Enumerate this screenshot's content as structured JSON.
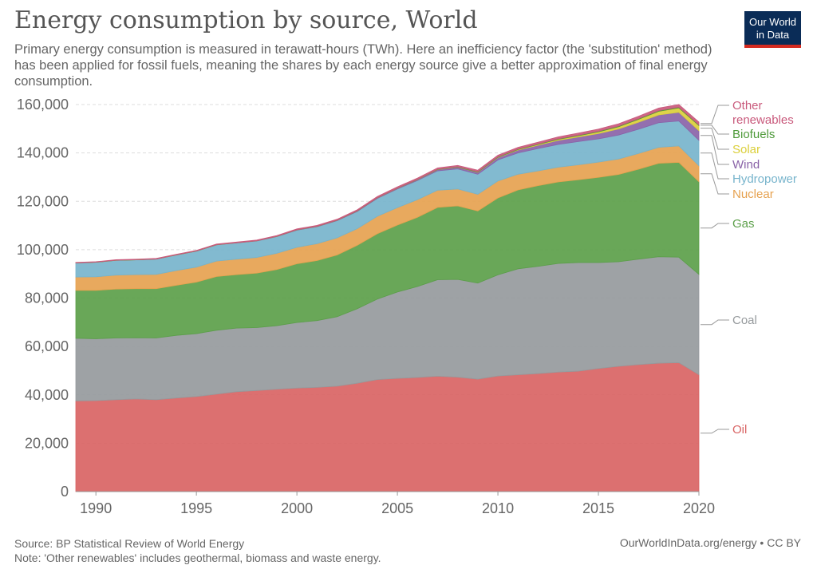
{
  "header": {
    "title": "Energy consumption by source, World",
    "subtitle": "Primary energy consumption is measured in terawatt-hours (TWh). Here an inefficiency factor (the 'substitution' method) has been applied for fossil fuels, meaning the shares by each energy source give a better approximation of final energy consumption.",
    "logo_line1": "Our World",
    "logo_line2": "in Data",
    "logo_color": "#0a2c57",
    "logo_accent": "#d42b21"
  },
  "footer": {
    "source": "Source: BP Statistical Review of World Energy",
    "note": "Note: 'Other renewables' includes geothermal, biomass and waste energy.",
    "license": "OurWorldInData.org/energy • CC BY"
  },
  "chart_data": {
    "type": "area",
    "stacked": true,
    "x": [
      1989,
      1990,
      1991,
      1992,
      1993,
      1994,
      1995,
      1996,
      1997,
      1998,
      1999,
      2000,
      2001,
      2002,
      2003,
      2004,
      2005,
      2006,
      2007,
      2008,
      2009,
      2010,
      2011,
      2012,
      2013,
      2014,
      2015,
      2016,
      2017,
      2018,
      2019,
      2020
    ],
    "xlim": [
      1989,
      2020
    ],
    "ylim": [
      0,
      160000
    ],
    "x_ticks": [
      "1990",
      "1995",
      "2000",
      "2005",
      "2010",
      "2015",
      "2020"
    ],
    "y_ticks": [
      "0",
      "20,000",
      "40,000",
      "60,000",
      "80,000",
      "100,000",
      "120,000",
      "140,000",
      "160,000"
    ],
    "grid": true,
    "legend_placement": "right, inline labels",
    "series": [
      {
        "name": "Oil",
        "color": "#d96464",
        "values": [
          37500,
          37600,
          38000,
          38300,
          38000,
          38700,
          39300,
          40300,
          41300,
          41800,
          42300,
          42800,
          43100,
          43600,
          44800,
          46300,
          46800,
          47200,
          47700,
          47300,
          46500,
          47800,
          48300,
          48800,
          49400,
          49800,
          50900,
          51800,
          52500,
          53100,
          53300,
          48300
        ]
      },
      {
        "name": "Coal",
        "color": "#969a9d",
        "values": [
          25900,
          25600,
          25500,
          25300,
          25500,
          25900,
          26000,
          26400,
          26300,
          26000,
          26300,
          27100,
          27600,
          28700,
          30800,
          33300,
          35700,
          37600,
          39900,
          40400,
          39700,
          41800,
          43800,
          44300,
          44900,
          44900,
          43800,
          43200,
          43600,
          44000,
          43600,
          41500
        ]
      },
      {
        "name": "Gas",
        "color": "#5c9f4a",
        "values": [
          19800,
          20000,
          20200,
          20300,
          20400,
          20700,
          21300,
          22200,
          22100,
          22500,
          23200,
          24300,
          24800,
          25500,
          26200,
          27000,
          27700,
          28600,
          29900,
          30400,
          29800,
          31800,
          32600,
          33400,
          33700,
          34200,
          35200,
          36100,
          37200,
          38600,
          39200,
          38300
        ]
      },
      {
        "name": "Nuclear",
        "color": "#e6a250",
        "values": [
          5500,
          5600,
          5800,
          5800,
          5900,
          6100,
          6200,
          6400,
          6400,
          6500,
          6700,
          6800,
          7000,
          7100,
          6900,
          7200,
          7200,
          7300,
          7100,
          7000,
          6900,
          7000,
          6500,
          6100,
          6100,
          6200,
          6300,
          6400,
          6500,
          6600,
          6800,
          6600
        ]
      },
      {
        "name": "Hydropower",
        "color": "#77b4cc",
        "values": [
          5800,
          6000,
          6100,
          6100,
          6300,
          6400,
          6600,
          6700,
          6700,
          6800,
          6900,
          7100,
          7000,
          7100,
          7100,
          7400,
          7700,
          7900,
          8000,
          8300,
          8300,
          8700,
          8800,
          9200,
          9400,
          9600,
          9600,
          9900,
          10000,
          10200,
          10300,
          10500
        ]
      },
      {
        "name": "Wind",
        "color": "#8a63a8",
        "values": [
          10,
          10,
          10,
          10,
          20,
          20,
          20,
          30,
          40,
          60,
          80,
          100,
          120,
          150,
          200,
          250,
          310,
          400,
          520,
          650,
          800,
          980,
          1200,
          1400,
          1700,
          1900,
          2200,
          2500,
          2900,
          3200,
          3600,
          4000
        ]
      },
      {
        "name": "Solar",
        "color": "#dbcf3b",
        "values": [
          0,
          0,
          0,
          0,
          0,
          0,
          0,
          0,
          0,
          0,
          0,
          10,
          10,
          10,
          10,
          10,
          20,
          20,
          30,
          40,
          70,
          110,
          200,
          300,
          400,
          500,
          700,
          900,
          1200,
          1500,
          1800,
          2100
        ]
      },
      {
        "name": "Biofuels",
        "color": "#4e9a3a",
        "values": [
          30,
          30,
          30,
          30,
          30,
          30,
          30,
          30,
          30,
          30,
          30,
          30,
          40,
          40,
          50,
          60,
          70,
          90,
          130,
          170,
          190,
          210,
          220,
          220,
          240,
          260,
          270,
          280,
          290,
          300,
          320,
          300
        ]
      },
      {
        "name": "Other renewables",
        "color": "#c95a7c",
        "values": [
          200,
          210,
          220,
          230,
          240,
          260,
          270,
          280,
          300,
          320,
          340,
          360,
          380,
          400,
          430,
          450,
          480,
          500,
          550,
          580,
          610,
          660,
          700,
          750,
          800,
          850,
          900,
          950,
          1000,
          1050,
          1100,
          1150
        ]
      }
    ]
  }
}
